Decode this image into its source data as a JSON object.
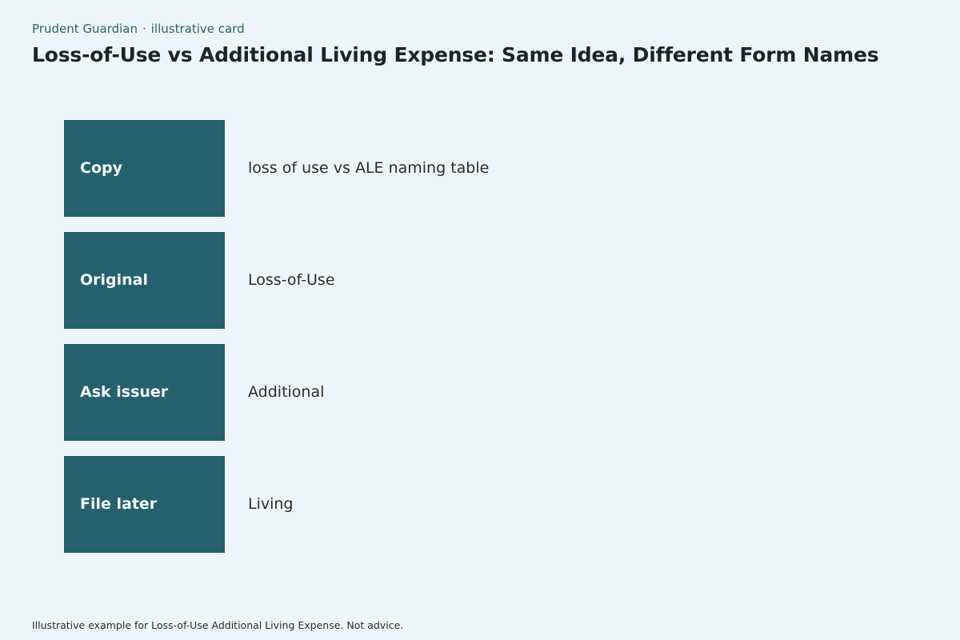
{
  "header": {
    "brand": "Prudent Guardian",
    "separator": "·",
    "kicker": "illustrative card",
    "title": "Loss-of-Use vs Additional Living Expense: Same Idea, Different Form Names"
  },
  "rows": [
    {
      "label": "Copy",
      "value": "loss of use vs ALE naming table"
    },
    {
      "label": "Original",
      "value": "Loss-of-Use"
    },
    {
      "label": "Ask issuer",
      "value": "Additional"
    },
    {
      "label": "File later",
      "value": "Living"
    }
  ],
  "footer": {
    "note": "Illustrative example for Loss-of-Use Additional Living Expense. Not advice."
  },
  "colors": {
    "background": "#eef5f8",
    "label_box": "#24606d",
    "brand_text": "#2a6270"
  }
}
